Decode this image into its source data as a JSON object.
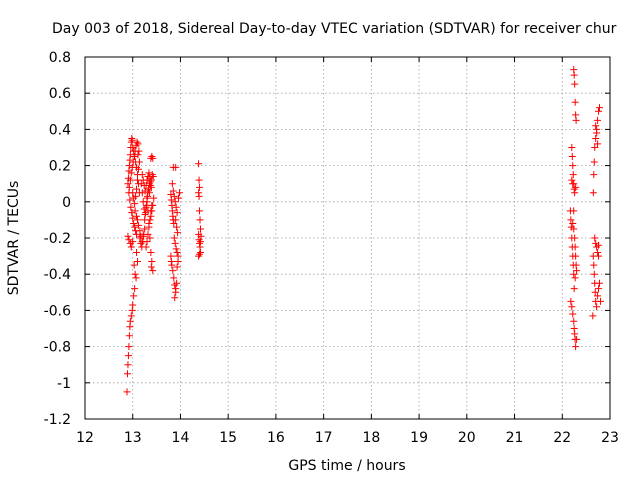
{
  "chart_data": {
    "type": "scatter",
    "title": "Day 003 of 2018, Sidereal Day-to-day VTEC variation (SDTVAR) for receiver chur",
    "xlabel": "GPS time / hours",
    "ylabel": "SDTVAR / TECUs",
    "xlim": [
      12,
      23
    ],
    "ylim": [
      -1.2,
      0.8
    ],
    "x_ticks": [
      "12",
      "13",
      "14",
      "15",
      "16",
      "17",
      "18",
      "19",
      "20",
      "21",
      "22",
      "23"
    ],
    "y_ticks": [
      "0.8",
      "0.6",
      "0.4",
      "0.2",
      "0",
      "-0.2",
      "-0.4",
      "-0.6",
      "-0.8",
      "-1",
      "-1.2"
    ],
    "x_tick_values": [
      12,
      13,
      14,
      15,
      16,
      17,
      18,
      19,
      20,
      21,
      22,
      23
    ],
    "y_tick_values": [
      0.8,
      0.6,
      0.4,
      0.2,
      0,
      -0.2,
      -0.4,
      -0.6,
      -0.8,
      -1,
      -1.2
    ],
    "grid": true,
    "marker": "+",
    "series": [
      {
        "name": "SDTVAR",
        "color": "#ff0000",
        "points": [
          [
            12.88,
            -1.05
          ],
          [
            12.89,
            -0.95
          ],
          [
            12.9,
            -0.9
          ],
          [
            12.91,
            -0.85
          ],
          [
            12.92,
            -0.8
          ],
          [
            12.93,
            -0.74
          ],
          [
            12.94,
            -0.69
          ],
          [
            12.95,
            -0.66
          ],
          [
            12.97,
            -0.63
          ],
          [
            12.99,
            -0.6
          ],
          [
            13.0,
            -0.57
          ],
          [
            13.02,
            -0.52
          ],
          [
            13.04,
            -0.48
          ],
          [
            12.9,
            -0.19
          ],
          [
            12.92,
            -0.21
          ],
          [
            12.95,
            -0.23
          ],
          [
            12.97,
            -0.25
          ],
          [
            13.0,
            -0.22
          ],
          [
            13.03,
            -0.35
          ],
          [
            13.05,
            -0.4
          ],
          [
            13.07,
            -0.42
          ],
          [
            13.1,
            -0.33
          ],
          [
            13.08,
            -0.28
          ],
          [
            12.9,
            0.1
          ],
          [
            12.91,
            0.13
          ],
          [
            12.92,
            0.17
          ],
          [
            12.93,
            0.2
          ],
          [
            12.94,
            0.23
          ],
          [
            12.95,
            0.26
          ],
          [
            12.96,
            0.3
          ],
          [
            12.97,
            0.33
          ],
          [
            12.98,
            0.35
          ],
          [
            12.99,
            0.34
          ],
          [
            12.92,
            0.05
          ],
          [
            12.94,
            0.01
          ],
          [
            12.96,
            -0.03
          ],
          [
            12.98,
            -0.06
          ],
          [
            13.0,
            -0.09
          ],
          [
            13.02,
            -0.12
          ],
          [
            13.04,
            -0.14
          ],
          [
            13.06,
            -0.16
          ],
          [
            13.08,
            -0.18
          ],
          [
            12.93,
            0.08
          ],
          [
            12.95,
            0.12
          ],
          [
            12.97,
            0.16
          ],
          [
            12.99,
            0.19
          ],
          [
            13.01,
            0.22
          ],
          [
            13.03,
            0.25
          ],
          [
            13.05,
            0.28
          ],
          [
            13.07,
            0.31
          ],
          [
            13.09,
            0.33
          ],
          [
            13.11,
            0.32
          ],
          [
            13.0,
            0.05
          ],
          [
            13.02,
            0.02
          ],
          [
            13.04,
            -0.01
          ],
          [
            13.06,
            0.03
          ],
          [
            13.08,
            0.07
          ],
          [
            13.1,
            0.12
          ],
          [
            13.12,
            0.18
          ],
          [
            13.14,
            0.22
          ],
          [
            13.13,
            0.28
          ],
          [
            13.11,
            0.26
          ],
          [
            13.0,
            0.3
          ],
          [
            13.02,
            0.28
          ],
          [
            13.04,
            0.25
          ],
          [
            13.06,
            0.22
          ],
          [
            13.08,
            0.19
          ],
          [
            13.1,
            0.15
          ],
          [
            13.12,
            0.1
          ],
          [
            13.14,
            0.05
          ],
          [
            13.05,
            -0.05
          ],
          [
            13.08,
            -0.08
          ],
          [
            13.1,
            -0.1
          ],
          [
            13.12,
            -0.13
          ],
          [
            13.15,
            -0.16
          ],
          [
            13.17,
            -0.19
          ],
          [
            13.2,
            -0.22
          ],
          [
            13.22,
            -0.18
          ],
          [
            13.15,
            -0.2
          ],
          [
            13.17,
            -0.23
          ],
          [
            13.19,
            -0.25
          ],
          [
            13.21,
            -0.22
          ],
          [
            13.23,
            -0.19
          ],
          [
            13.25,
            -0.15
          ],
          [
            13.18,
            0.1
          ],
          [
            13.2,
            0.05
          ],
          [
            13.22,
            0.0
          ],
          [
            13.24,
            -0.04
          ],
          [
            13.26,
            -0.07
          ],
          [
            13.28,
            -0.03
          ],
          [
            13.3,
            0.02
          ],
          [
            13.32,
            0.06
          ],
          [
            13.2,
            0.15
          ],
          [
            13.22,
            0.12
          ],
          [
            13.24,
            0.09
          ],
          [
            13.26,
            0.06
          ],
          [
            13.28,
            0.09
          ],
          [
            13.3,
            0.12
          ],
          [
            13.32,
            0.14
          ],
          [
            13.34,
            0.16
          ],
          [
            13.36,
            0.13
          ],
          [
            13.25,
            -0.1
          ],
          [
            13.27,
            -0.06
          ],
          [
            13.29,
            -0.02
          ],
          [
            13.31,
            0.03
          ],
          [
            13.33,
            0.07
          ],
          [
            13.35,
            0.1
          ],
          [
            13.37,
            0.11
          ],
          [
            13.39,
            0.08
          ],
          [
            13.28,
            -0.25
          ],
          [
            13.3,
            -0.22
          ],
          [
            13.32,
            -0.18
          ],
          [
            13.34,
            -0.14
          ],
          [
            13.36,
            -0.1
          ],
          [
            13.38,
            -0.05
          ],
          [
            13.4,
            -0.02
          ],
          [
            13.3,
            0.0
          ],
          [
            13.32,
            -0.05
          ],
          [
            13.34,
            -0.12
          ],
          [
            13.36,
            -0.2
          ],
          [
            13.38,
            -0.28
          ],
          [
            13.4,
            -0.33
          ],
          [
            13.42,
            -0.38
          ],
          [
            13.39,
            -0.36
          ],
          [
            13.35,
            0.05
          ],
          [
            13.37,
            0.09
          ],
          [
            13.39,
            0.12
          ],
          [
            13.41,
            0.15
          ],
          [
            13.43,
            0.14
          ],
          [
            13.38,
            0.24
          ],
          [
            13.4,
            0.25
          ],
          [
            13.42,
            0.24
          ],
          [
            13.38,
            -0.08
          ],
          [
            13.4,
            -0.05
          ],
          [
            13.42,
            -0.02
          ],
          [
            13.44,
            0.02
          ],
          [
            13.8,
            0.04
          ],
          [
            13.81,
            0.01
          ],
          [
            13.82,
            -0.02
          ],
          [
            13.83,
            -0.05
          ],
          [
            13.84,
            -0.08
          ],
          [
            13.85,
            -0.1
          ],
          [
            13.86,
            -0.12
          ],
          [
            13.8,
            -0.3
          ],
          [
            13.81,
            -0.33
          ],
          [
            13.82,
            -0.35
          ],
          [
            13.84,
            -0.38
          ],
          [
            13.86,
            -0.42
          ],
          [
            13.88,
            -0.46
          ],
          [
            13.9,
            -0.48
          ],
          [
            13.92,
            -0.45
          ],
          [
            13.83,
            0.1
          ],
          [
            13.85,
            0.06
          ],
          [
            13.87,
            0.03
          ],
          [
            13.89,
            0.0
          ],
          [
            13.91,
            -0.03
          ],
          [
            13.93,
            -0.06
          ],
          [
            13.85,
            0.19
          ],
          [
            13.9,
            0.19
          ],
          [
            13.87,
            -0.2
          ],
          [
            13.89,
            -0.23
          ],
          [
            13.91,
            -0.26
          ],
          [
            13.93,
            -0.28
          ],
          [
            13.95,
            -0.3
          ],
          [
            13.88,
            -0.53
          ],
          [
            13.9,
            -0.5
          ],
          [
            13.93,
            -0.36
          ],
          [
            13.95,
            -0.33
          ],
          [
            13.9,
            -0.1
          ],
          [
            13.92,
            -0.14
          ],
          [
            13.94,
            -0.17
          ],
          [
            13.96,
            0.02
          ],
          [
            13.98,
            0.05
          ],
          [
            14.38,
            0.21
          ],
          [
            14.39,
            0.12
          ],
          [
            14.4,
            0.08
          ],
          [
            14.39,
            0.03
          ],
          [
            14.38,
            0.05
          ],
          [
            14.4,
            -0.05
          ],
          [
            14.41,
            -0.1
          ],
          [
            14.42,
            -0.15
          ],
          [
            14.38,
            -0.18
          ],
          [
            14.39,
            -0.21
          ],
          [
            14.4,
            -0.23
          ],
          [
            14.41,
            -0.25
          ],
          [
            14.42,
            -0.22
          ],
          [
            14.43,
            -0.19
          ],
          [
            14.38,
            -0.3
          ],
          [
            14.4,
            -0.29
          ],
          [
            14.42,
            -0.28
          ],
          [
            22.17,
            -0.05
          ],
          [
            22.18,
            -0.1
          ],
          [
            22.19,
            -0.14
          ],
          [
            22.2,
            -0.2
          ],
          [
            22.21,
            -0.25
          ],
          [
            22.22,
            -0.3
          ],
          [
            22.23,
            -0.35
          ],
          [
            22.24,
            -0.4
          ],
          [
            22.18,
            -0.55
          ],
          [
            22.2,
            -0.58
          ],
          [
            22.22,
            -0.62
          ],
          [
            22.24,
            -0.66
          ],
          [
            22.25,
            -0.7
          ],
          [
            22.26,
            -0.73
          ],
          [
            22.27,
            -0.76
          ],
          [
            22.28,
            -0.8
          ],
          [
            22.3,
            -0.76
          ],
          [
            22.2,
            0.3
          ],
          [
            22.21,
            0.25
          ],
          [
            22.22,
            0.2
          ],
          [
            22.23,
            0.15
          ],
          [
            22.24,
            0.1
          ],
          [
            22.25,
            0.07
          ],
          [
            22.26,
            0.05
          ],
          [
            22.28,
            0.08
          ],
          [
            22.24,
            0.73
          ],
          [
            22.25,
            0.7
          ],
          [
            22.26,
            0.65
          ],
          [
            22.27,
            0.55
          ],
          [
            22.28,
            0.48
          ],
          [
            22.29,
            0.45
          ],
          [
            22.22,
            -0.12
          ],
          [
            22.24,
            -0.15
          ],
          [
            22.26,
            -0.2
          ],
          [
            22.27,
            -0.25
          ],
          [
            22.28,
            -0.3
          ],
          [
            22.29,
            -0.35
          ],
          [
            22.3,
            -0.38
          ],
          [
            22.27,
            -0.42
          ],
          [
            22.25,
            -0.48
          ],
          [
            22.2,
            0.12
          ],
          [
            22.22,
            0.1
          ],
          [
            22.24,
            -0.05
          ],
          [
            22.65,
            0.05
          ],
          [
            22.66,
            0.15
          ],
          [
            22.67,
            0.22
          ],
          [
            22.68,
            0.3
          ],
          [
            22.7,
            0.35
          ],
          [
            22.72,
            0.4
          ],
          [
            22.74,
            0.45
          ],
          [
            22.76,
            0.5
          ],
          [
            22.78,
            0.52
          ],
          [
            22.65,
            -0.3
          ],
          [
            22.66,
            -0.35
          ],
          [
            22.67,
            -0.4
          ],
          [
            22.68,
            -0.45
          ],
          [
            22.69,
            -0.5
          ],
          [
            22.7,
            -0.55
          ],
          [
            22.72,
            -0.58
          ],
          [
            22.74,
            -0.52
          ],
          [
            22.76,
            -0.48
          ],
          [
            22.68,
            -0.2
          ],
          [
            22.7,
            -0.23
          ],
          [
            22.72,
            -0.25
          ],
          [
            22.74,
            -0.28
          ],
          [
            22.76,
            -0.3
          ],
          [
            22.78,
            -0.45
          ],
          [
            22.8,
            -0.55
          ],
          [
            22.64,
            -0.63
          ],
          [
            22.7,
            0.42
          ],
          [
            22.72,
            0.38
          ],
          [
            22.74,
            0.32
          ],
          [
            22.76,
            -0.24
          ]
        ]
      }
    ]
  }
}
